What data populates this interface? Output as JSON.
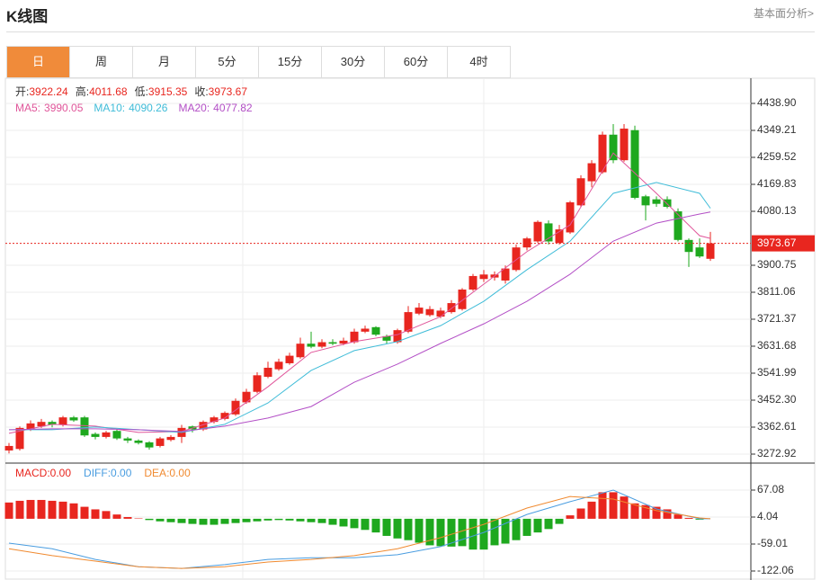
{
  "header": {
    "title": "K线图",
    "link": "基本面分析>"
  },
  "tabs": [
    "日",
    "周",
    "月",
    "5分",
    "15分",
    "30分",
    "60分",
    "4时"
  ],
  "active_tab": 0,
  "chart_data": [
    {
      "type": "candlestick",
      "ohlc_labels": [
        "开:",
        "高:",
        "低:",
        "收:"
      ],
      "open": [
        3285,
        3290,
        3355,
        3365,
        3380,
        3370,
        3395,
        3395,
        3340,
        3330,
        3350,
        3325,
        3318,
        3312,
        3300,
        3320,
        3330,
        3365,
        3355,
        3380,
        3390,
        3405,
        3445,
        3480,
        3530,
        3555,
        3575,
        3595,
        3640,
        3630,
        3645,
        3640,
        3645,
        3680,
        3695,
        3665,
        3645,
        3680,
        3740,
        3735,
        3730,
        3745,
        3755,
        3820,
        3855,
        3860,
        3850,
        3885,
        3960,
        3980,
        4040,
        3975,
        4010,
        4100,
        4180,
        4210,
        4335,
        4250,
        4350,
        4130,
        4120,
        4120,
        4080,
        3985,
        3960,
        3922.24
      ],
      "high": [
        3310,
        3365,
        3385,
        3390,
        3385,
        3400,
        3400,
        3400,
        3345,
        3350,
        3355,
        3330,
        3322,
        3316,
        3330,
        3336,
        3370,
        3368,
        3385,
        3400,
        3415,
        3458,
        3490,
        3545,
        3580,
        3590,
        3610,
        3660,
        3680,
        3655,
        3655,
        3660,
        3690,
        3700,
        3698,
        3670,
        3690,
        3765,
        3775,
        3765,
        3760,
        3785,
        3825,
        3872,
        3885,
        3880,
        3900,
        3970,
        3995,
        4050,
        4050,
        4035,
        4115,
        4200,
        4250,
        4345,
        4370,
        4370,
        4365,
        4135,
        4130,
        4130,
        4090,
        3990,
        3990,
        4011.68
      ],
      "low": [
        3275,
        3285,
        3350,
        3360,
        3362,
        3365,
        3380,
        3330,
        3322,
        3325,
        3320,
        3310,
        3305,
        3288,
        3295,
        3315,
        3310,
        3345,
        3350,
        3375,
        3385,
        3400,
        3440,
        3475,
        3525,
        3550,
        3570,
        3590,
        3625,
        3625,
        3635,
        3635,
        3640,
        3675,
        3665,
        3640,
        3640,
        3675,
        3735,
        3730,
        3725,
        3740,
        3750,
        3815,
        3845,
        3850,
        3840,
        3880,
        3950,
        3975,
        3970,
        3970,
        4005,
        4095,
        4160,
        4205,
        4240,
        4245,
        4120,
        4050,
        4095,
        4090,
        3980,
        3895,
        3925,
        3915.35
      ],
      "close": [
        3300,
        3360,
        3375,
        3380,
        3370,
        3395,
        3385,
        3335,
        3330,
        3345,
        3325,
        3318,
        3310,
        3295,
        3325,
        3330,
        3360,
        3355,
        3380,
        3395,
        3410,
        3450,
        3480,
        3535,
        3560,
        3580,
        3600,
        3640,
        3630,
        3645,
        3640,
        3650,
        3680,
        3690,
        3670,
        3650,
        3685,
        3745,
        3760,
        3755,
        3750,
        3775,
        3820,
        3865,
        3870,
        3870,
        3890,
        3960,
        3990,
        4045,
        3980,
        4020,
        4110,
        4190,
        4240,
        4335,
        4250,
        4355,
        4125,
        4100,
        4105,
        4095,
        3985,
        3945,
        3930,
        3973.67
      ],
      "up_color": "#e8261f",
      "down_color": "#1ea81e",
      "ylim": [
        3243.0,
        4522.6
      ],
      "yticks": [
        {
          "value": 4438.9,
          "label": "4438.90"
        },
        4349.21,
        4259.52,
        4169.83,
        4080.13,
        3900.75,
        3811.06,
        3721.37,
        3631.68,
        3541.99,
        {
          "value": 3452.3,
          "label": "3452.30"
        },
        3362.61,
        3272.92
      ],
      "grid": true,
      "last_price_line": true,
      "series": [
        {
          "name": "MA5:",
          "color": "#e0559a",
          "x": [
            0,
            4,
            8,
            12,
            16,
            20,
            24,
            28,
            32,
            36,
            40,
            44,
            48,
            52,
            56,
            60,
            64,
            65
          ],
          "values": [
            3342,
            3372,
            3366,
            3345,
            3348,
            3393,
            3497,
            3611,
            3647,
            3670,
            3730,
            3838,
            3946,
            4035,
            4274,
            4140,
            3999,
            3990.05
          ]
        },
        {
          "name": "MA10:",
          "color": "#3fbcd8",
          "x": [
            0,
            4,
            8,
            12,
            16,
            20,
            24,
            28,
            32,
            36,
            40,
            44,
            48,
            52,
            56,
            60,
            64,
            65
          ],
          "values": [
            3354,
            3354,
            3363,
            3354,
            3345,
            3372,
            3443,
            3551,
            3617,
            3647,
            3700,
            3781,
            3886,
            3981,
            4140,
            4176,
            4140,
            4090.26
          ]
        },
        {
          "name": "MA20:",
          "color": "#b34fc6",
          "x": [
            0,
            4,
            8,
            12,
            16,
            20,
            24,
            28,
            32,
            36,
            40,
            44,
            48,
            52,
            56,
            60,
            64,
            65
          ],
          "values": [
            3354,
            3357,
            3357,
            3354,
            3348,
            3366,
            3393,
            3431,
            3512,
            3572,
            3641,
            3706,
            3781,
            3871,
            3981,
            4041,
            4071,
            4077.82
          ]
        }
      ]
    },
    {
      "type": "macd",
      "up_color": "#e8261f",
      "down_color": "#1ea81e",
      "ylim": [
        -143.1,
        125.9
      ],
      "yticks": [
        67.08,
        4.04,
        -59.01,
        -122.06
      ],
      "grid": true,
      "series": [
        {
          "name": "MACD:",
          "type": "bar",
          "color": "#e8261f",
          "legend_label": "0.00",
          "values": [
            38,
            42,
            44,
            44,
            42,
            40,
            36,
            28,
            22,
            18,
            10,
            4,
            1,
            -3,
            -6,
            -8,
            -10,
            -12,
            -14,
            -14,
            -12,
            -10,
            -8,
            -6,
            -4,
            -3,
            -4,
            -6,
            -8,
            -10,
            -14,
            -18,
            -22,
            -26,
            -32,
            -40,
            -46,
            -50,
            -56,
            -62,
            -64,
            -65,
            -64,
            -72,
            -72,
            -62,
            -58,
            -50,
            -40,
            -32,
            -24,
            -12,
            8,
            24,
            40,
            62,
            62,
            52,
            36,
            32,
            28,
            22,
            10,
            2,
            -2,
            0
          ]
        },
        {
          "name": "DIFF:",
          "type": "line",
          "color": "#4a9de0",
          "legend_label": "0.00",
          "x": [
            0,
            4,
            8,
            12,
            16,
            20,
            24,
            28,
            32,
            36,
            40,
            44,
            48,
            52,
            56,
            60,
            64,
            65
          ],
          "values": [
            -57,
            -70,
            -95,
            -112,
            -116,
            -107,
            -95,
            -91,
            -91,
            -84,
            -65,
            -32,
            10,
            40,
            67,
            23,
            0,
            0
          ]
        },
        {
          "name": "DEA:",
          "type": "line",
          "color": "#f08a30",
          "legend_label": "0.00",
          "x": [
            0,
            4,
            8,
            12,
            16,
            20,
            24,
            28,
            32,
            36,
            40,
            44,
            48,
            52,
            56,
            60,
            64,
            65
          ],
          "values": [
            -70,
            -86,
            -99,
            -112,
            -116,
            -112,
            -101,
            -95,
            -86,
            -70,
            -44,
            -13,
            25,
            52,
            46,
            19,
            2,
            0
          ]
        }
      ]
    }
  ]
}
